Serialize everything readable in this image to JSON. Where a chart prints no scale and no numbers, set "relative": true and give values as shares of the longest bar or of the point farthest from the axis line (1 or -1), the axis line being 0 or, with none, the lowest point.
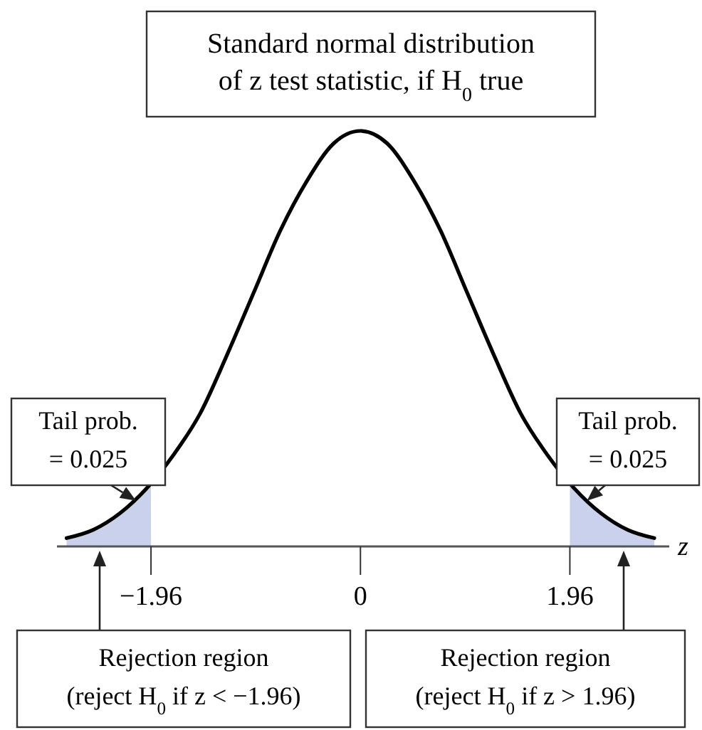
{
  "chart_data": {
    "type": "line",
    "relative": true,
    "title": "Standard normal distribution\nof z test statistic, if H$_{0}$ true",
    "xlabel": "z",
    "x": [
      -2.75,
      -2.5,
      -2.25,
      -2,
      -1.75,
      -1.5,
      -1.25,
      -1,
      -0.75,
      -0.5,
      -0.25,
      0,
      0.25,
      0.5,
      0.75,
      1,
      1.25,
      1.5,
      1.75,
      2,
      2.25,
      2.5,
      2.75
    ],
    "series": [
      {
        "type": "area",
        "color": "#c9d1ec",
        "x": [
          -2.75,
          -2.5,
          -2.25,
          -2,
          -1.96
        ],
        "values": [
          0.02,
          0.04,
          0.08,
          0.14,
          0.15
        ]
      },
      {
        "type": "area",
        "color": "#c9d1ec",
        "x": [
          1.96,
          2,
          2.25,
          2.5,
          2.75
        ],
        "values": [
          0.15,
          0.14,
          0.08,
          0.04,
          0.02
        ]
      },
      {
        "color": "#000000",
        "values": [
          0.02,
          0.04,
          0.08,
          0.14,
          0.22,
          0.32,
          0.46,
          0.61,
          0.76,
          0.88,
          0.97,
          1,
          0.97,
          0.88,
          0.76,
          0.61,
          0.46,
          0.32,
          0.22,
          0.14,
          0.08,
          0.04,
          0.02
        ]
      }
    ],
    "xlim": [
      -2.84,
      2.89
    ],
    "xticks": [
      {
        "value": -1.96,
        "label": "−1.96"
      },
      0,
      1.96
    ],
    "annotations": [
      {
        "text": "Tail prob.\n= 0.025",
        "x": -2.1,
        "y": 0.11
      },
      {
        "text": "Tail prob.\n= 0.025",
        "x": 2.12,
        "y": 0.11
      },
      "Rejection region\n(reject H$_{0}$ if z < −1.96)",
      "Rejection region\n(reject H$_{0}$ if z > 1.96)"
    ],
    "marker": "none",
    "line_style": "solid",
    "grid": false
  }
}
